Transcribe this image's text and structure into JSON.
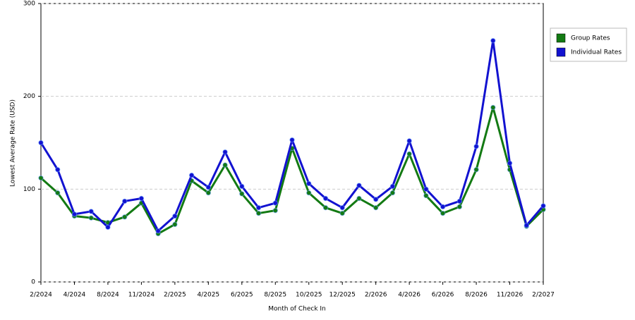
{
  "chart_data": {
    "type": "line",
    "xlabel": "Month of Check In",
    "ylabel": "Lowest Average Rate (USD)",
    "categories": [
      "2/2024",
      null,
      "4/2024",
      null,
      "8/2024",
      null,
      "11/2024",
      null,
      "2/2025",
      null,
      "4/2025",
      null,
      "6/2025",
      null,
      "8/2025",
      null,
      "10/2025",
      null,
      "12/2025",
      null,
      "2/2026",
      null,
      "4/2026",
      null,
      "6/2026",
      null,
      "8/2026",
      null,
      "11/2026",
      null,
      "2/2027"
    ],
    "series": [
      {
        "name": "Group Rates",
        "color": "#137a13",
        "values": [
          112,
          96,
          71,
          69,
          64,
          70,
          85,
          52,
          62,
          109,
          96,
          126,
          95,
          74,
          77,
          144,
          96,
          80,
          74,
          90,
          80,
          96,
          138,
          93,
          74,
          81,
          121,
          188,
          121,
          60,
          78
        ]
      },
      {
        "name": "Individual Rates",
        "color": "#1212d0",
        "values": [
          150,
          121,
          73,
          76,
          59,
          87,
          90,
          55,
          71,
          115,
          102,
          140,
          103,
          80,
          85,
          153,
          106,
          90,
          80,
          104,
          89,
          103,
          152,
          100,
          81,
          87,
          146,
          260,
          128,
          61,
          82
        ]
      }
    ],
    "ylim": [
      0,
      300
    ],
    "yticks": [
      0,
      100,
      200,
      300
    ],
    "grid": true,
    "legend": "right"
  }
}
